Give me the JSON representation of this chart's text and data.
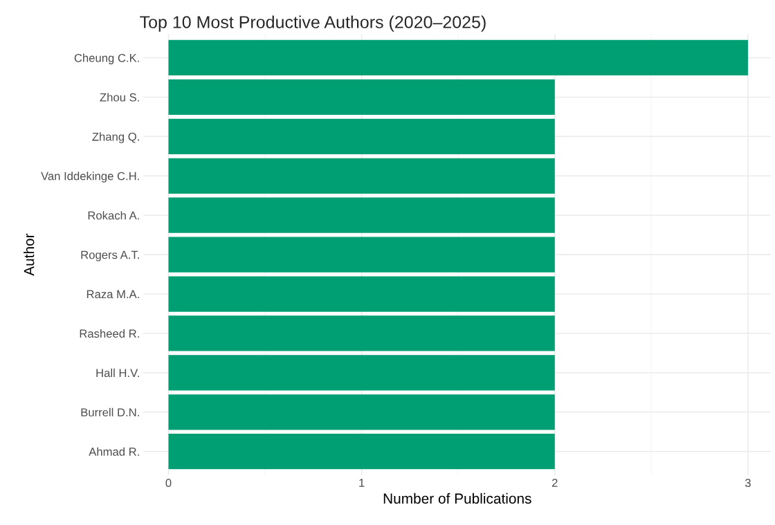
{
  "chart_data": {
    "type": "bar",
    "orientation": "horizontal",
    "title": "Top 10 Most Productive Authors (2020–2025)",
    "xlabel": "Number of Publications",
    "ylabel": "Author",
    "categories": [
      "Cheung C.K.",
      "Zhou S.",
      "Zhang Q.",
      "Van Iddekinge C.H.",
      "Rokach A.",
      "Rogers A.T.",
      "Raza M.A.",
      "Rasheed R.",
      "Hall H.V.",
      "Burrell D.N.",
      "Ahmad R."
    ],
    "values": [
      3,
      2,
      2,
      2,
      2,
      2,
      2,
      2,
      2,
      2,
      2
    ],
    "color": "#009e73",
    "xlim": [
      -0.13,
      3.12
    ],
    "xticks": [
      0,
      {
        "value": 0.5,
        "label": null
      },
      1,
      {
        "value": 1.5,
        "label": null
      },
      2,
      {
        "value": 2.5,
        "label": null
      },
      3
    ],
    "grid": true,
    "legend": false
  }
}
